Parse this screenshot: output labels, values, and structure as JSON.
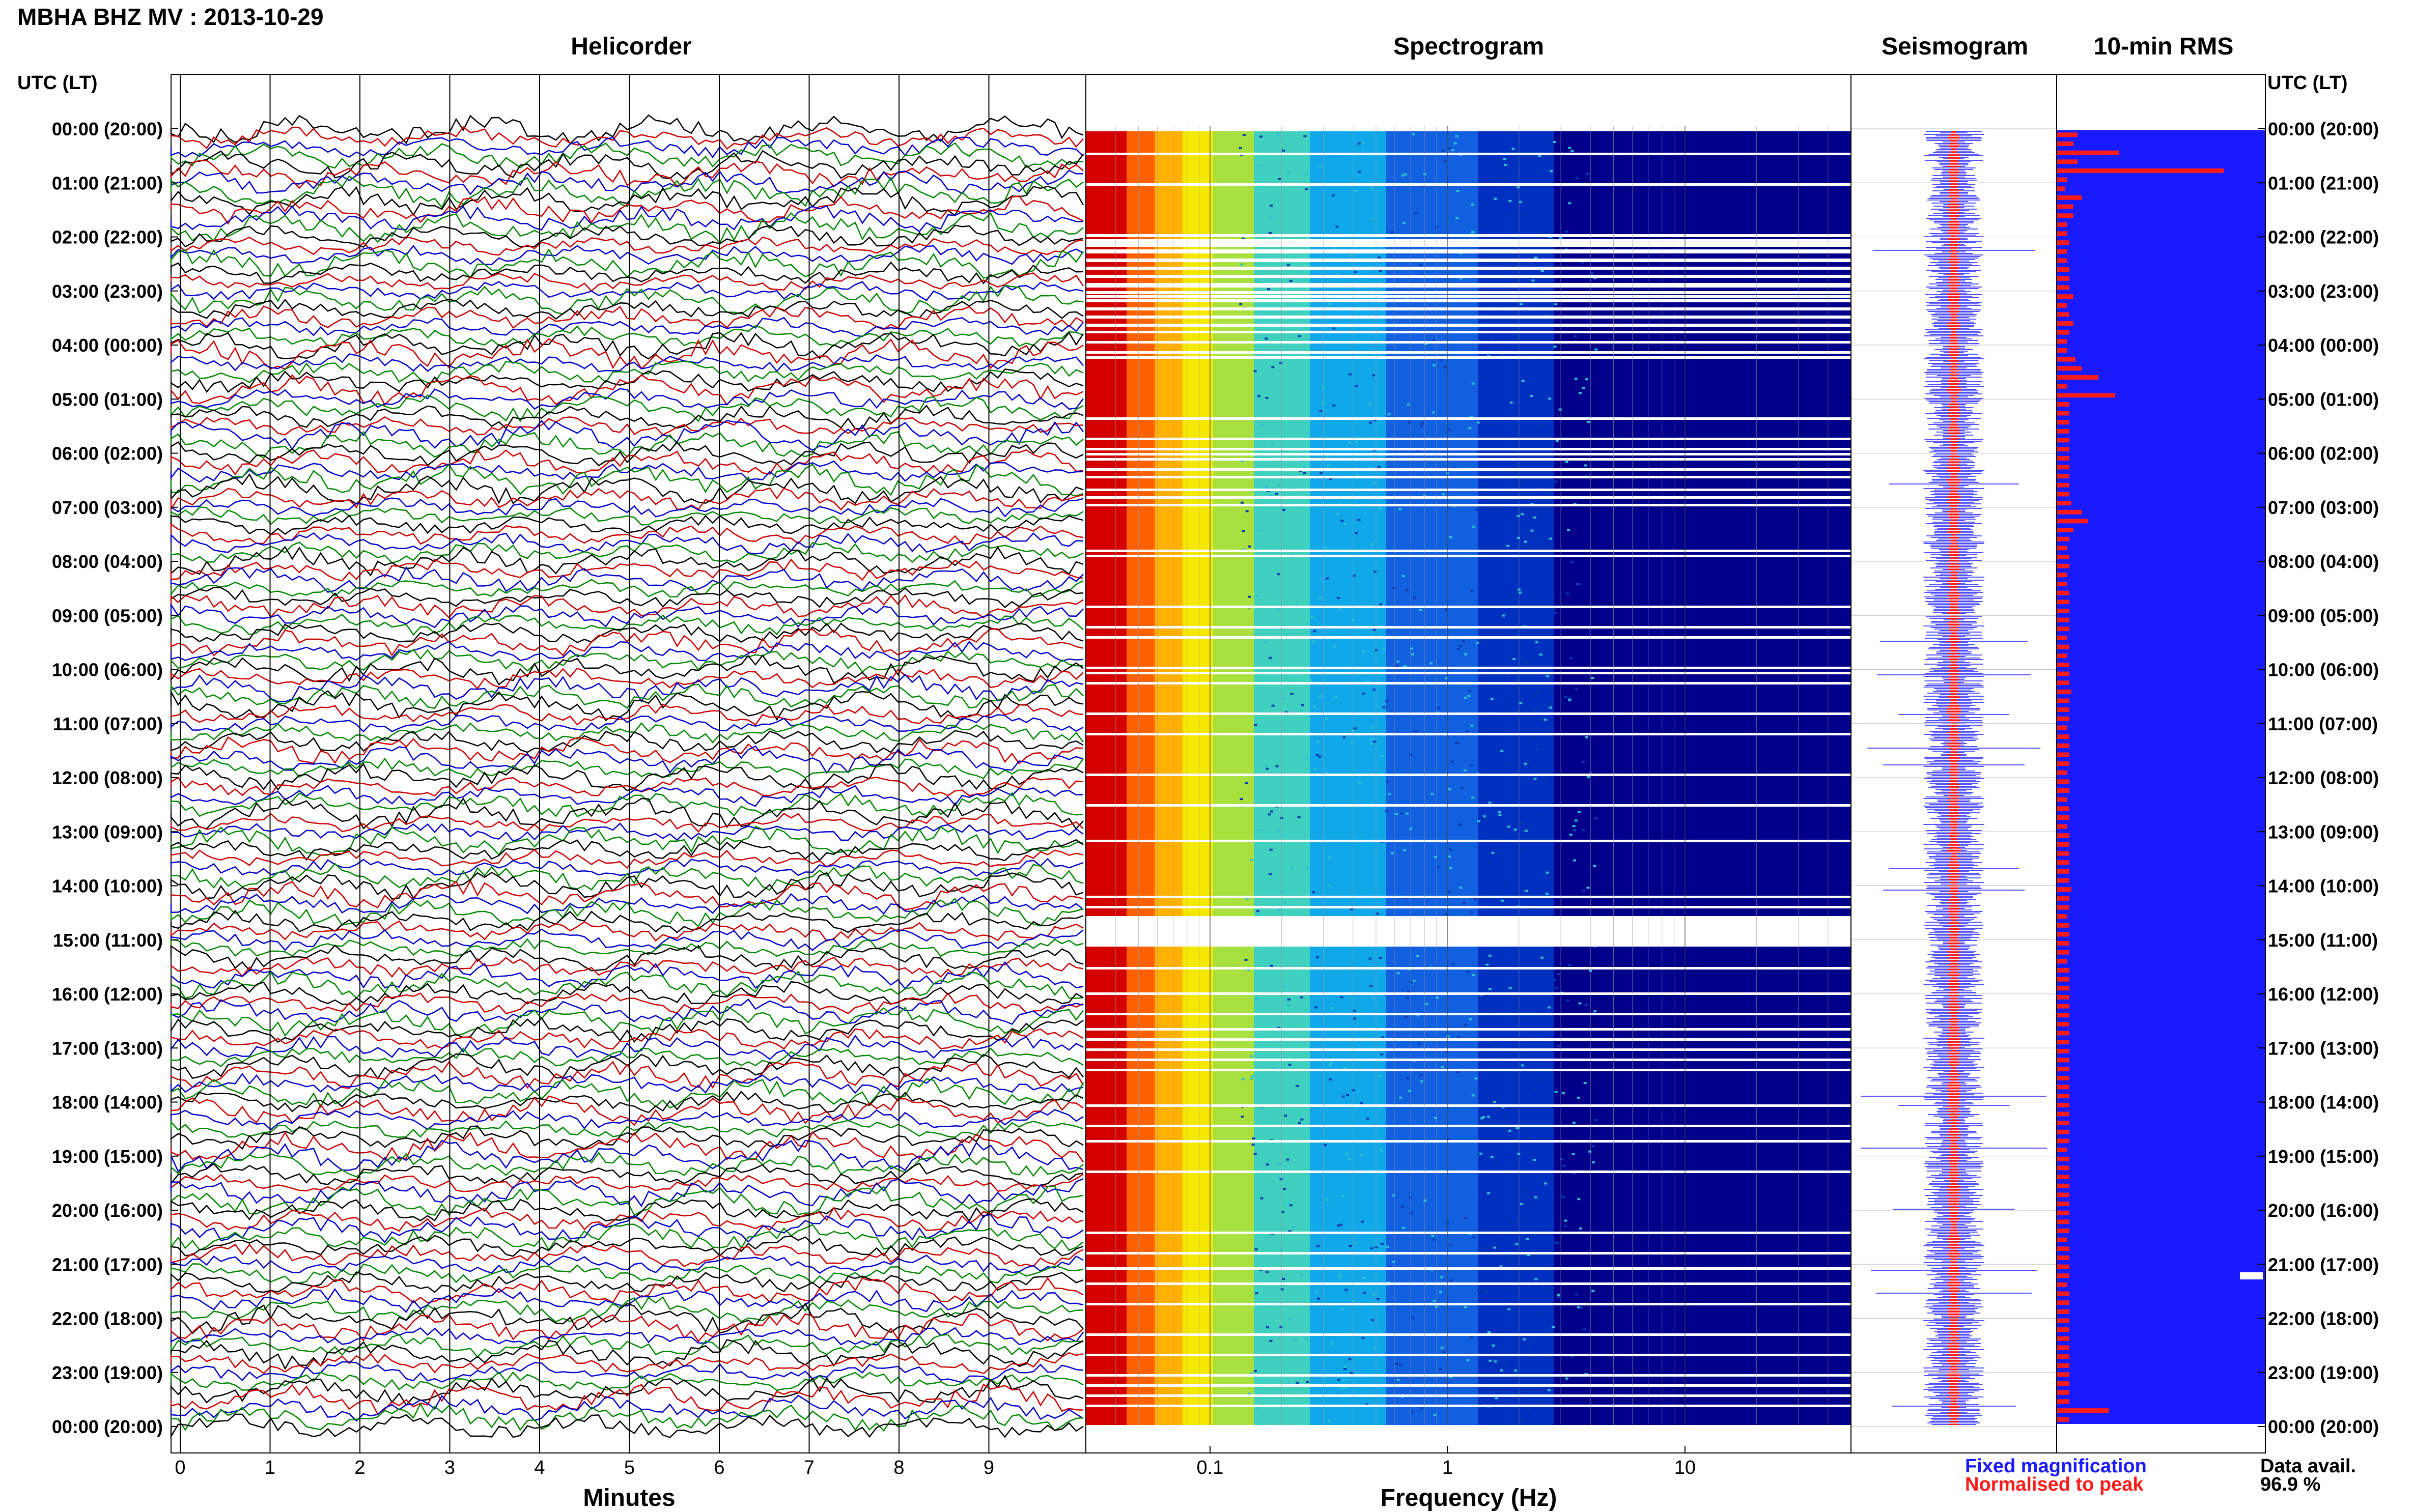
{
  "header": {
    "title": "MBHA BHZ MV : 2013-10-29"
  },
  "panels": {
    "helicorder": "Helicorder",
    "spectrogram": "Spectrogram",
    "seismogram": "Seismogram",
    "rms": "10-min RMS"
  },
  "axis": {
    "utc_label": "UTC (LT)",
    "minutes_label": "Minutes",
    "frequency_label": "Frequency (Hz)",
    "minute_ticks": [
      "0",
      "1",
      "2",
      "3",
      "4",
      "5",
      "6",
      "7",
      "8",
      "9"
    ],
    "frequency_ticks": [
      "0.1",
      "1",
      "10"
    ],
    "time_ticks": [
      "00:00 (20:00)",
      "01:00 (21:00)",
      "02:00 (22:00)",
      "03:00 (23:00)",
      "04:00 (00:00)",
      "05:00 (01:00)",
      "06:00 (02:00)",
      "07:00 (03:00)",
      "08:00 (04:00)",
      "09:00 (05:00)",
      "10:00 (06:00)",
      "11:00 (07:00)",
      "12:00 (08:00)",
      "13:00 (09:00)",
      "14:00 (10:00)",
      "15:00 (11:00)",
      "16:00 (12:00)",
      "17:00 (13:00)",
      "18:00 (14:00)",
      "19:00 (15:00)",
      "20:00 (16:00)",
      "21:00 (17:00)",
      "22:00 (18:00)",
      "23:00 (19:00)",
      "00:00 (20:00)"
    ]
  },
  "legend": {
    "fixed": "Fixed magnification",
    "normalised": "Normalised to peak"
  },
  "availability": {
    "label": "Data avail.",
    "value": "96.9 %"
  },
  "colors": {
    "trace_black": "#000000",
    "trace_red": "#cc0000",
    "trace_blue": "#0000cc",
    "trace_green": "#008800",
    "seis_fixed": "#1a1aff",
    "seis_norm": "#ff1a1a",
    "rms_bar": "#ff1a1a",
    "rms_bg": "#1a1aff",
    "spec_low": "#00008b"
  },
  "chart_data": {
    "type": "heatmap",
    "station": "MBHA BHZ MV",
    "date": "2013-10-29",
    "helicorder_minutes_range": [
      0,
      10
    ],
    "time_range_hours": [
      0,
      24
    ],
    "frequency_range_hz": [
      0.03,
      50
    ],
    "frequency_scale": "log",
    "rms_intervals_minutes": 10,
    "rms_values_relative": [
      0.1,
      0.08,
      0.3,
      0.1,
      0.8,
      0.05,
      0.04,
      0.12,
      0.08,
      0.08,
      0.05,
      0.05,
      0.06,
      0.05,
      0.05,
      0.06,
      0.06,
      0.06,
      0.08,
      0.05,
      0.06,
      0.08,
      0.06,
      0.05,
      0.05,
      0.09,
      0.12,
      0.2,
      0.05,
      0.28,
      0.06,
      0.06,
      0.06,
      0.06,
      0.06,
      0.06,
      0.06,
      0.06,
      0.06,
      0.06,
      0.06,
      0.07,
      0.12,
      0.15,
      0.08,
      0.06,
      0.05,
      0.06,
      0.06,
      0.05,
      0.05,
      0.06,
      0.06,
      0.06,
      0.06,
      0.06,
      0.05,
      0.06,
      0.05,
      0.06,
      0.06,
      0.06,
      0.07,
      0.06,
      0.06,
      0.06,
      0.05,
      0.06,
      0.06,
      0.06,
      0.06,
      0.05,
      0.06,
      0.06,
      0.05,
      0.06,
      0.06,
      0.05,
      0.06,
      0.06,
      0.06,
      0.06,
      0.06,
      0.06,
      0.07,
      0.06,
      0.06,
      0.05,
      0.06,
      0.06,
      0.06,
      0.06,
      0.05,
      0.06,
      0.06,
      0.06,
      0.06,
      0.06,
      0.06,
      0.06,
      0.06,
      0.06,
      0.06,
      0.06,
      0.06,
      0.06,
      0.06,
      0.06,
      0.06,
      0.06,
      0.06,
      0.06,
      0.06,
      0.05,
      0.06,
      0.06,
      0.06,
      0.06,
      0.06,
      0.06,
      0.06,
      0.06,
      0.06,
      0.05,
      0.06,
      0.06,
      0.06,
      0.06,
      0.05,
      0.06,
      0.06,
      0.06,
      0.06,
      0.06,
      0.06,
      0.06,
      0.06,
      0.06,
      0.06,
      0.06,
      0.06,
      0.06,
      0.25,
      0.06
    ],
    "data_availability_percent": 96.9
  }
}
